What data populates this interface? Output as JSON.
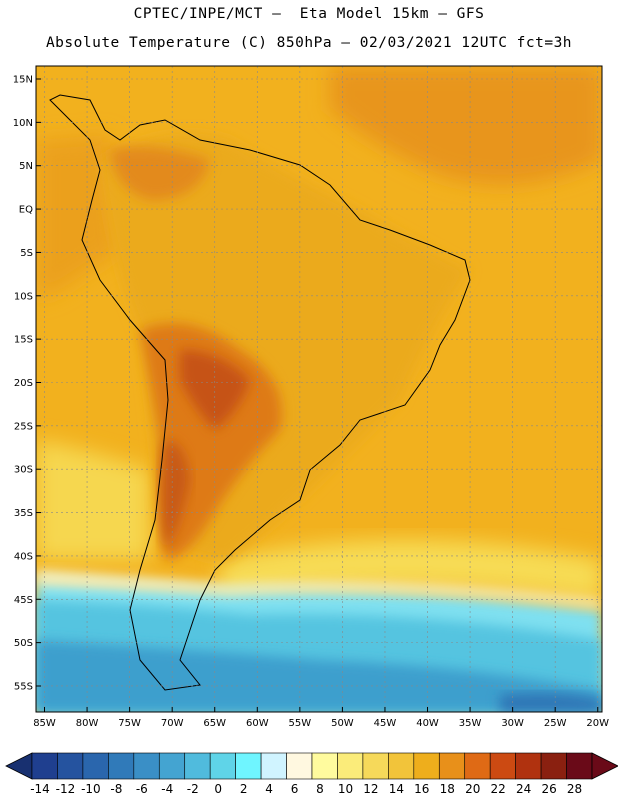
{
  "title_line1": "CPTEC/INPE/MCT –  Eta Model 15km – GFS",
  "title_line2": "Absolute Temperature (C) 850hPa – 02/03/2021 12UTC fct=3h",
  "map": {
    "lon_range": [
      -86,
      -19.5
    ],
    "lat_range": [
      -58,
      16.5
    ],
    "lat_ticks": [
      {
        "value": 15,
        "label": "15N"
      },
      {
        "value": 10,
        "label": "10N"
      },
      {
        "value": 5,
        "label": "5N"
      },
      {
        "value": 0,
        "label": "EQ"
      },
      {
        "value": -5,
        "label": "5S"
      },
      {
        "value": -10,
        "label": "10S"
      },
      {
        "value": -15,
        "label": "15S"
      },
      {
        "value": -20,
        "label": "20S"
      },
      {
        "value": -25,
        "label": "25S"
      },
      {
        "value": -30,
        "label": "30S"
      },
      {
        "value": -35,
        "label": "35S"
      },
      {
        "value": -40,
        "label": "40S"
      },
      {
        "value": -45,
        "label": "45S"
      },
      {
        "value": -50,
        "label": "50S"
      },
      {
        "value": -55,
        "label": "55S"
      }
    ],
    "lon_ticks": [
      {
        "value": -85,
        "label": "85W"
      },
      {
        "value": -80,
        "label": "80W"
      },
      {
        "value": -75,
        "label": "75W"
      },
      {
        "value": -70,
        "label": "70W"
      },
      {
        "value": -65,
        "label": "65W"
      },
      {
        "value": -60,
        "label": "60W"
      },
      {
        "value": -55,
        "label": "55W"
      },
      {
        "value": -50,
        "label": "50W"
      },
      {
        "value": -45,
        "label": "45W"
      },
      {
        "value": -40,
        "label": "40W"
      },
      {
        "value": -35,
        "label": "35W"
      },
      {
        "value": -30,
        "label": "30W"
      },
      {
        "value": -25,
        "label": "25W"
      },
      {
        "value": -20,
        "label": "20W"
      }
    ],
    "grid": true
  },
  "colorbar": {
    "labels": [
      "-14",
      "-12",
      "-10",
      "-8",
      "-6",
      "-4",
      "-2",
      "0",
      "2",
      "4",
      "6",
      "8",
      "10",
      "12",
      "14",
      "16",
      "18",
      "20",
      "22",
      "24",
      "26",
      "28"
    ],
    "colors": [
      "#1f3f8f",
      "#25539f",
      "#2a66ad",
      "#307ab9",
      "#3a8fc6",
      "#44a4d1",
      "#50bbdd",
      "#5fd4e8",
      "#6ff5ff",
      "#d0f4ff",
      "#fff8e0",
      "#fffb9e",
      "#fbec7a",
      "#f6d95a",
      "#f2c43a",
      "#eeae1c",
      "#e8901a",
      "#df6a15",
      "#cc4a12",
      "#b0320f",
      "#8a2010",
      "#6a0a18"
    ],
    "min_color": "#183070",
    "max_color": "#6a0a18"
  }
}
